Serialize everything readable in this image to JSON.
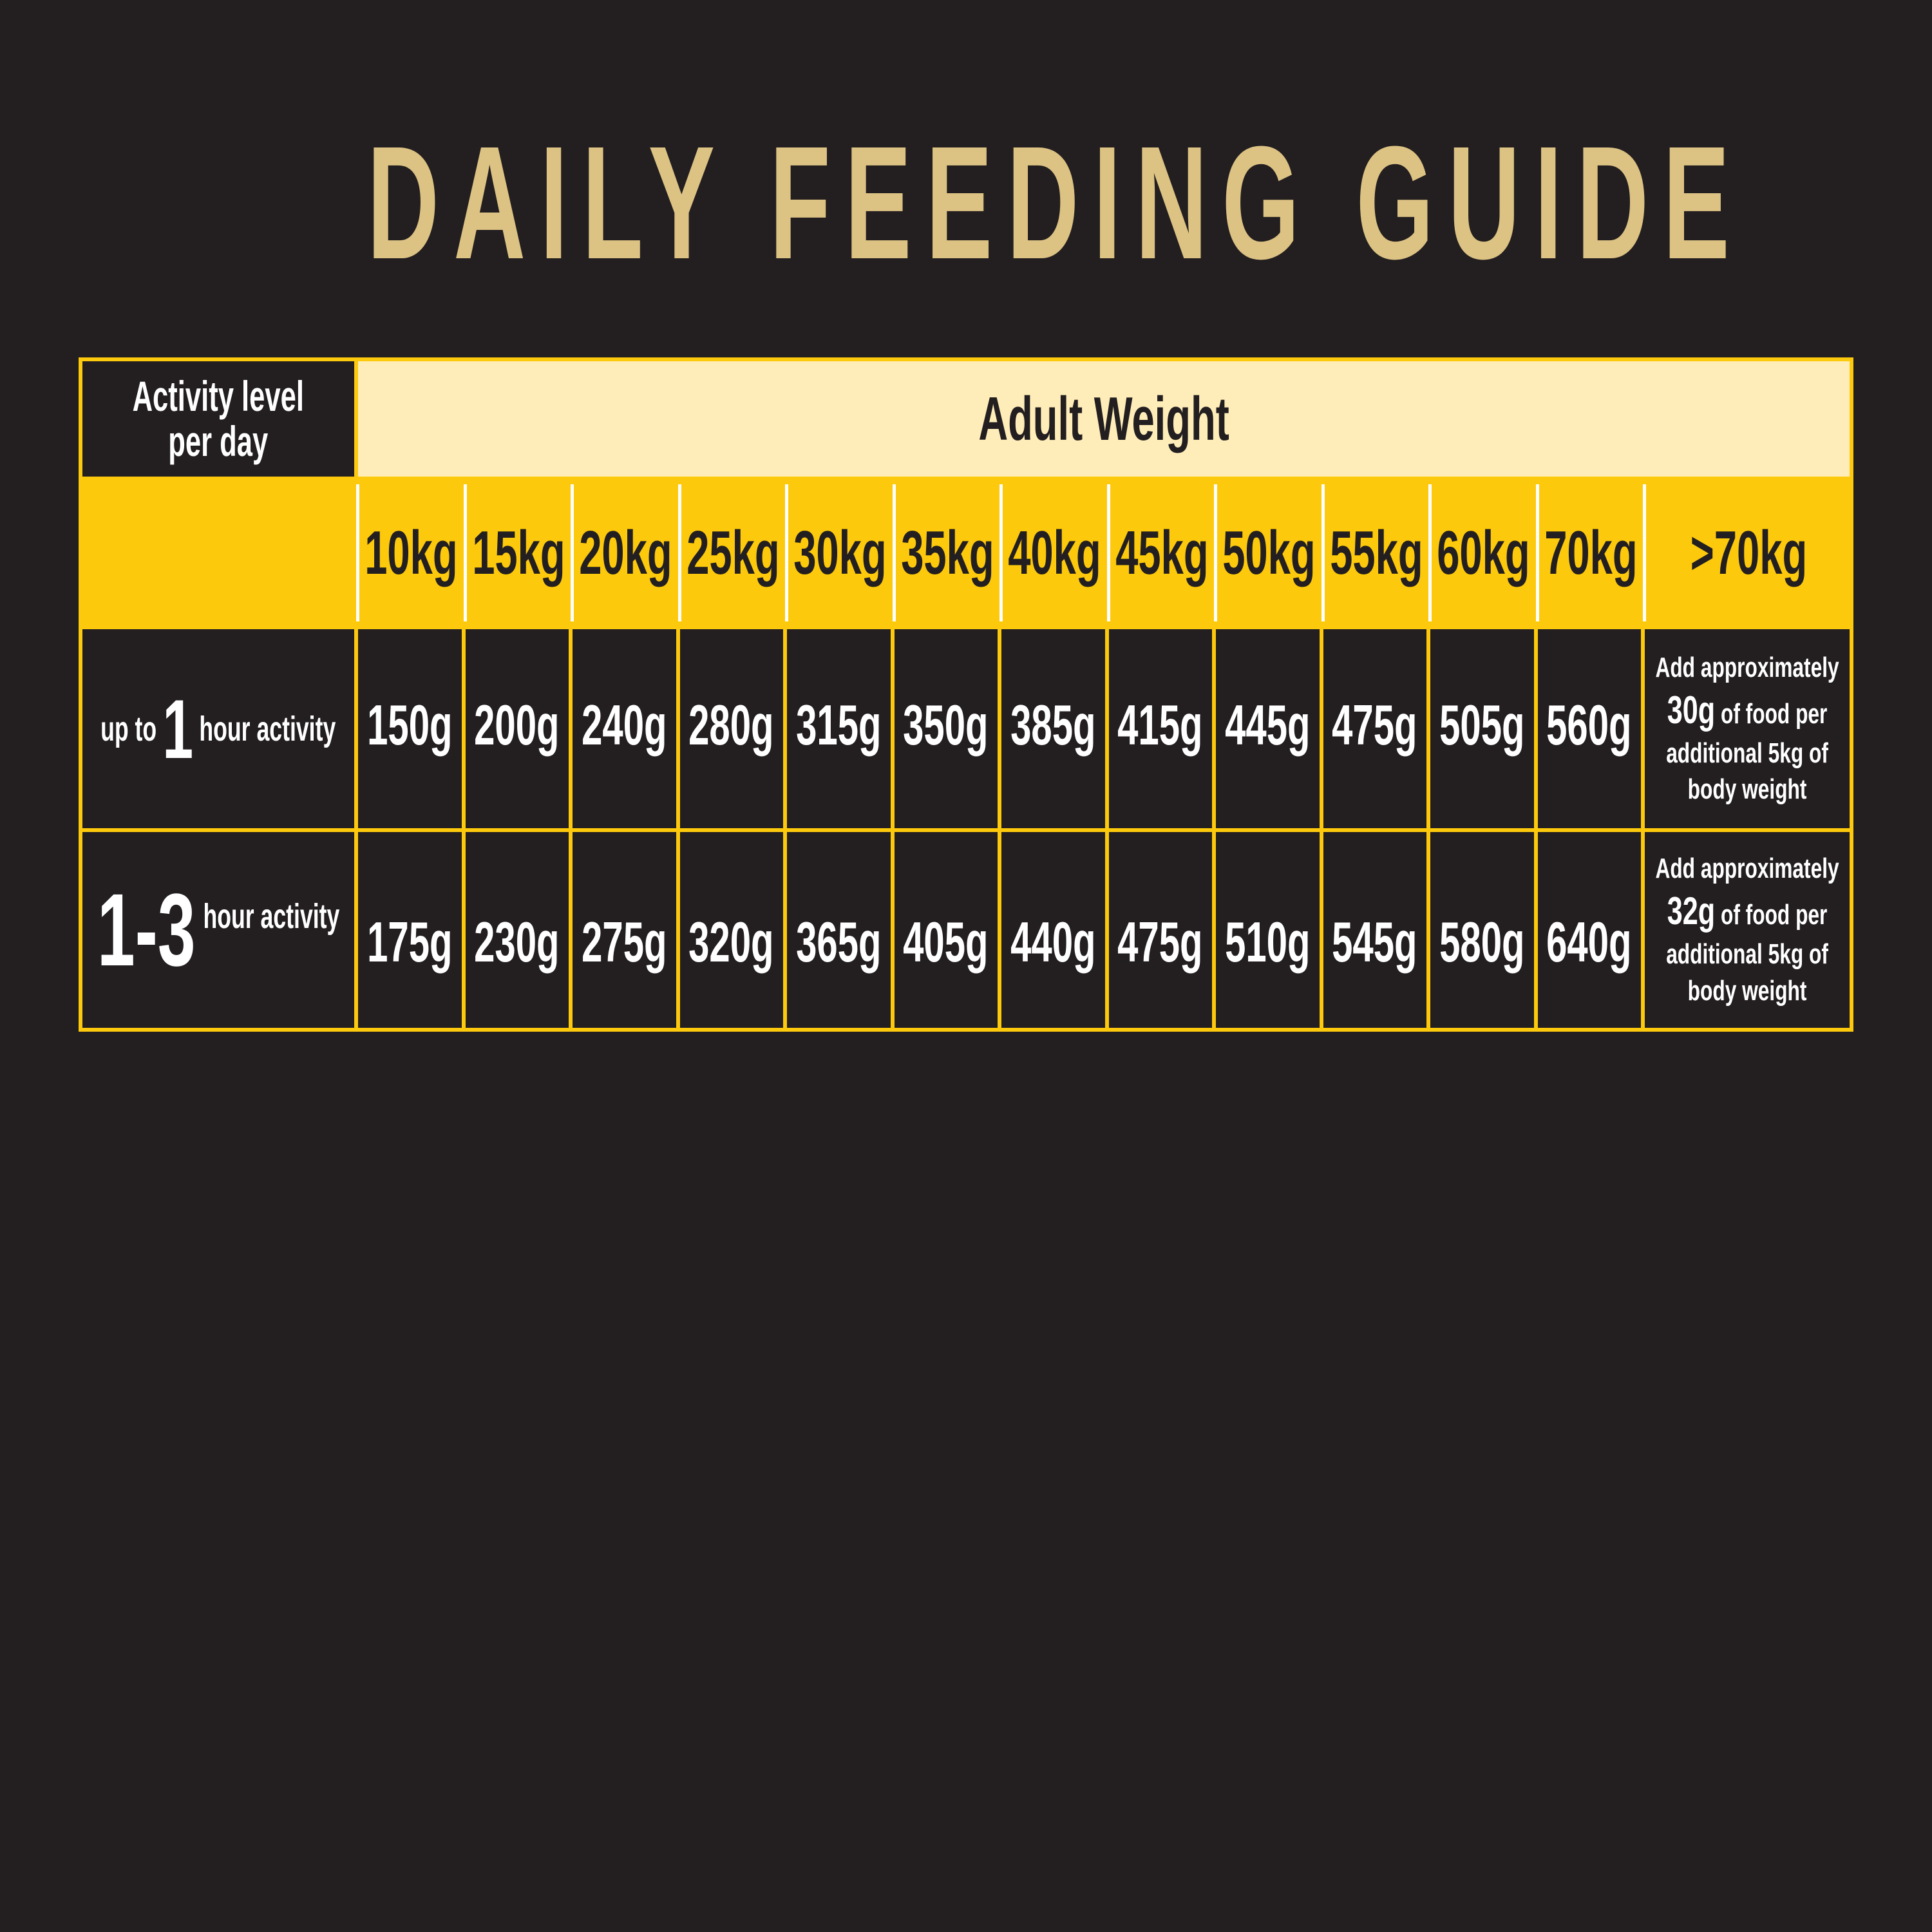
{
  "title": "DAILY FEEDING GUIDE",
  "table": {
    "activity_header": [
      "Activity level",
      "per day"
    ],
    "weight_header": "Adult Weight",
    "weights": [
      "10kg",
      "15kg",
      "20kg",
      "25kg",
      "30kg",
      "35kg",
      "40kg",
      "45kg",
      "50kg",
      "55kg",
      "60kg",
      "70kg",
      ">70kg"
    ],
    "rows": [
      {
        "activity_prefix": "up to",
        "activity_number": "1",
        "activity_suffix": "hour activity",
        "values": [
          "150g",
          "200g",
          "240g",
          "280g",
          "315g",
          "350g",
          "385g",
          "415g",
          "445g",
          "475g",
          "505g",
          "560g"
        ],
        "note": {
          "line1": "Add approximately",
          "amount": "30g",
          "line2": "of food per",
          "line3": "additional 5kg of",
          "line4": "body weight"
        }
      },
      {
        "activity_prefix": "",
        "activity_number": "1-3",
        "activity_suffix": "hour activity",
        "values": [
          "175g",
          "230g",
          "275g",
          "320g",
          "365g",
          "405g",
          "440g",
          "475g",
          "510g",
          "545g",
          "580g",
          "640g"
        ],
        "note": {
          "line1": "Add approximately",
          "amount": "32g",
          "line2": "of food per",
          "line3": "additional 5kg of",
          "line4": "body weight"
        }
      }
    ]
  },
  "colors": {
    "background": "#231f20",
    "title": "#dcc283",
    "accent_yellow": "#fdc90c",
    "header_cream": "#ffedb9",
    "text_light": "#ffffff"
  }
}
